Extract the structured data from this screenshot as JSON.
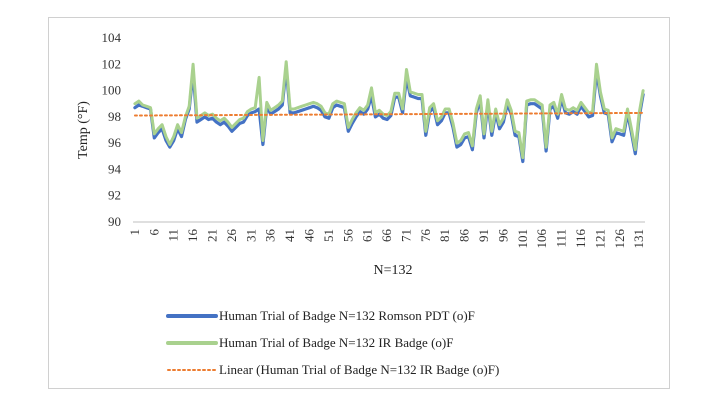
{
  "chart_data": {
    "type": "line",
    "xlabel": "N=132",
    "ylabel": "Temp (°F)",
    "ylim": [
      90,
      104
    ],
    "yticks": [
      90,
      92,
      94,
      96,
      98,
      100,
      102,
      104
    ],
    "xtick_labels": [
      "1",
      "6",
      "11",
      "16",
      "21",
      "26",
      "31",
      "36",
      "41",
      "46",
      "51",
      "56",
      "61",
      "66",
      "71",
      "76",
      "81",
      "86",
      "91",
      "96",
      "101",
      "106",
      "111",
      "116",
      "121",
      "126",
      "131"
    ],
    "grid": false,
    "legend_position": "bottom",
    "series": [
      {
        "name": "Human Trial of Badge N=132  Romson PDT (o)F",
        "color": "#4472c4",
        "values": [
          98.7,
          98.9,
          98.8,
          98.7,
          98.6,
          96.4,
          96.8,
          97.1,
          96.2,
          95.7,
          96.2,
          97.1,
          96.5,
          97.8,
          98.6,
          101.4,
          97.6,
          97.8,
          98.0,
          97.8,
          97.9,
          97.6,
          97.4,
          97.6,
          97.3,
          96.9,
          97.2,
          97.5,
          97.6,
          98.1,
          98.3,
          98.4,
          98.6,
          95.9,
          98.8,
          98.2,
          98.4,
          98.6,
          98.9,
          101.7,
          98.3,
          98.3,
          98.4,
          98.5,
          98.6,
          98.7,
          98.8,
          98.7,
          98.5,
          98.0,
          97.9,
          98.7,
          98.9,
          98.8,
          98.7,
          96.9,
          97.5,
          98.0,
          98.4,
          98.2,
          98.6,
          99.6,
          98.0,
          98.2,
          97.9,
          97.8,
          98.1,
          99.5,
          99.5,
          98.3,
          101.0,
          99.6,
          99.5,
          99.4,
          99.4,
          96.6,
          98.4,
          98.7,
          97.4,
          97.7,
          98.3,
          98.3,
          97.2,
          95.7,
          95.9,
          96.4,
          96.5,
          95.5,
          98.3,
          99.3,
          96.4,
          99.0,
          96.6,
          98.3,
          97.1,
          97.6,
          99.0,
          98.2,
          96.6,
          96.5,
          94.6,
          98.9,
          99.0,
          99.0,
          98.8,
          98.6,
          95.4,
          98.6,
          98.8,
          97.9,
          99.4,
          98.3,
          98.2,
          98.4,
          98.2,
          98.8,
          98.4,
          98.0,
          98.1,
          101.5,
          99.6,
          98.3,
          98.2,
          96.1,
          96.8,
          96.7,
          96.6,
          98.3,
          96.8,
          95.2,
          98.0,
          99.7
        ],
        "dash": "solid"
      },
      {
        "name": "Human Trial of Badge N=132  IR Badge (o)F",
        "color": "#a9d18e",
        "values": [
          99.0,
          99.2,
          98.9,
          98.8,
          98.7,
          96.7,
          97.1,
          97.4,
          96.5,
          95.9,
          96.5,
          97.4,
          96.8,
          98.0,
          98.8,
          102.0,
          97.9,
          98.1,
          98.3,
          98.1,
          98.2,
          97.9,
          97.7,
          97.9,
          97.6,
          97.2,
          97.5,
          97.8,
          97.9,
          98.4,
          98.6,
          98.7,
          101.0,
          96.2,
          99.1,
          98.5,
          98.7,
          98.9,
          99.2,
          102.2,
          98.6,
          98.6,
          98.7,
          98.8,
          98.9,
          99.0,
          99.1,
          99.0,
          98.8,
          98.3,
          98.2,
          99.0,
          99.2,
          99.1,
          99.0,
          97.2,
          97.8,
          98.3,
          98.7,
          98.5,
          98.9,
          100.2,
          98.3,
          98.5,
          98.2,
          98.1,
          98.4,
          99.8,
          99.8,
          98.6,
          101.6,
          99.9,
          99.8,
          99.7,
          99.7,
          96.9,
          98.7,
          99.0,
          97.7,
          98.0,
          98.6,
          98.6,
          97.5,
          96.0,
          96.2,
          96.7,
          96.8,
          95.8,
          98.6,
          99.6,
          96.7,
          99.3,
          96.9,
          98.6,
          97.4,
          97.9,
          99.3,
          98.5,
          96.9,
          96.8,
          94.9,
          99.2,
          99.3,
          99.3,
          99.1,
          98.9,
          95.7,
          98.9,
          99.1,
          98.2,
          99.7,
          98.6,
          98.5,
          98.7,
          98.5,
          99.1,
          98.7,
          98.3,
          98.4,
          102.0,
          99.9,
          98.6,
          98.5,
          96.4,
          97.1,
          97.0,
          96.9,
          98.6,
          97.1,
          95.5,
          98.3,
          100.0
        ],
        "dash": "solid"
      }
    ],
    "trendline": {
      "name": "Linear (Human Trial of Badge N=132  IR Badge (o)F)",
      "color": "#ed7d31",
      "start": 98.1,
      "end": 98.3,
      "dash": "dotted"
    }
  }
}
